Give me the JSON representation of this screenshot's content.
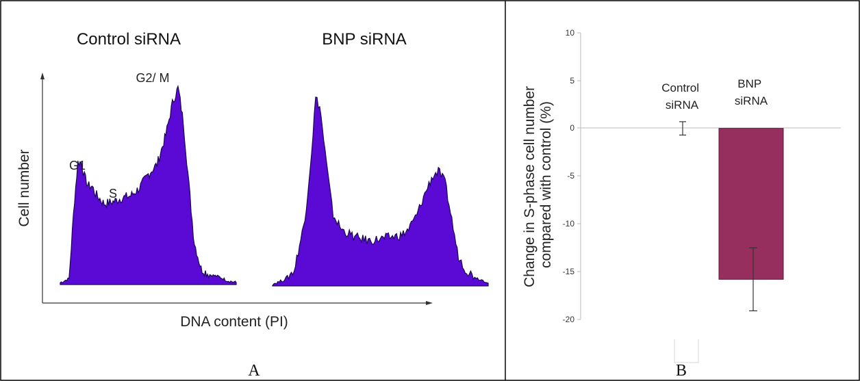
{
  "panels": {
    "a": {
      "letter": "A",
      "ylabel": "Cell number",
      "xlabel": "DNA content (PI)",
      "phase_labels": [
        "G1",
        "S",
        "G2/ M"
      ]
    },
    "b": {
      "letter": "B"
    }
  },
  "colors": {
    "histogram_fill": "#5b0ad6",
    "histogram_edge": "#1a0550",
    "bar_bnp": "#962f5e",
    "frame": "#000000"
  },
  "chart_data": [
    {
      "type": "area",
      "panel": "A",
      "xlabel": "DNA content (PI)",
      "ylabel": "Cell number",
      "histograms": [
        {
          "title": "Control siRNA",
          "profile": [
            [
              0,
              0.01
            ],
            [
              0.05,
              0.03
            ],
            [
              0.08,
              0.42
            ],
            [
              0.1,
              0.62
            ],
            [
              0.12,
              0.62
            ],
            [
              0.14,
              0.54
            ],
            [
              0.16,
              0.5
            ],
            [
              0.18,
              0.5
            ],
            [
              0.2,
              0.46
            ],
            [
              0.25,
              0.41
            ],
            [
              0.3,
              0.42
            ],
            [
              0.35,
              0.44
            ],
            [
              0.4,
              0.45
            ],
            [
              0.45,
              0.49
            ],
            [
              0.5,
              0.56
            ],
            [
              0.55,
              0.61
            ],
            [
              0.6,
              0.76
            ],
            [
              0.64,
              0.93
            ],
            [
              0.67,
              1.0
            ],
            [
              0.7,
              0.82
            ],
            [
              0.73,
              0.52
            ],
            [
              0.76,
              0.22
            ],
            [
              0.8,
              0.08
            ],
            [
              0.85,
              0.05
            ],
            [
              0.9,
              0.04
            ],
            [
              0.95,
              0.02
            ],
            [
              1.0,
              0.01
            ]
          ]
        },
        {
          "title": "BNP siRNA",
          "profile": [
            [
              0,
              0.01
            ],
            [
              0.05,
              0.03
            ],
            [
              0.1,
              0.08
            ],
            [
              0.15,
              0.35
            ],
            [
              0.18,
              0.7
            ],
            [
              0.2,
              1.0
            ],
            [
              0.22,
              0.95
            ],
            [
              0.25,
              0.65
            ],
            [
              0.28,
              0.38
            ],
            [
              0.32,
              0.3
            ],
            [
              0.38,
              0.26
            ],
            [
              0.45,
              0.24
            ],
            [
              0.5,
              0.25
            ],
            [
              0.55,
              0.26
            ],
            [
              0.6,
              0.27
            ],
            [
              0.63,
              0.3
            ],
            [
              0.67,
              0.38
            ],
            [
              0.71,
              0.5
            ],
            [
              0.74,
              0.58
            ],
            [
              0.77,
              0.61
            ],
            [
              0.8,
              0.55
            ],
            [
              0.83,
              0.36
            ],
            [
              0.86,
              0.16
            ],
            [
              0.9,
              0.08
            ],
            [
              0.95,
              0.04
            ],
            [
              1.0,
              0.02
            ]
          ]
        }
      ]
    },
    {
      "type": "bar",
      "panel": "B",
      "ylabel_lines": [
        "Change in S-phase  cell number",
        "compared with  control (%)"
      ],
      "ylim": [
        -20,
        10
      ],
      "yticks": [
        10,
        5,
        0,
        -5,
        -10,
        -15,
        -20
      ],
      "tick_labels": [
        "10",
        "5",
        "0",
        "-5",
        "-10",
        "-15",
        "-20"
      ],
      "bars": [
        {
          "label_lines": [
            "Control",
            "siRNA"
          ],
          "value": 0,
          "error": 0.7
        },
        {
          "label_lines": [
            "BNP",
            "siRNA"
          ],
          "value": -15.8,
          "error": 3.3
        }
      ]
    }
  ]
}
